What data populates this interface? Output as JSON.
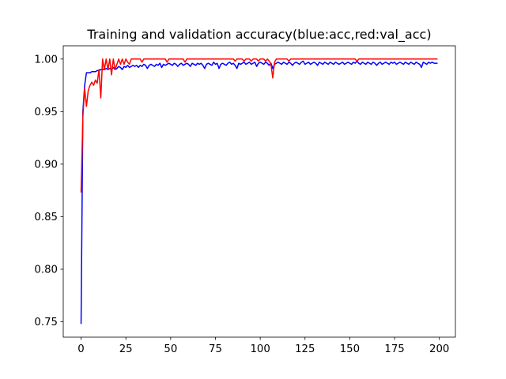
{
  "chart_data": {
    "type": "line",
    "title": "Training and validation accuracy(blue:acc,red:val_acc)",
    "x": [
      0,
      1,
      2,
      3,
      4,
      5,
      6,
      7,
      8,
      9,
      10,
      11,
      12,
      13,
      14,
      15,
      16,
      17,
      18,
      19,
      20,
      21,
      22,
      23,
      24,
      25,
      26,
      27,
      28,
      29,
      30,
      31,
      32,
      33,
      34,
      35,
      36,
      37,
      38,
      39,
      40,
      41,
      42,
      43,
      44,
      45,
      46,
      47,
      48,
      49,
      50,
      51,
      52,
      53,
      54,
      55,
      56,
      57,
      58,
      59,
      60,
      61,
      62,
      63,
      64,
      65,
      66,
      67,
      68,
      69,
      70,
      71,
      72,
      73,
      74,
      75,
      76,
      77,
      78,
      79,
      80,
      81,
      82,
      83,
      84,
      85,
      86,
      87,
      88,
      89,
      90,
      91,
      92,
      93,
      94,
      95,
      96,
      97,
      98,
      99,
      100,
      101,
      102,
      103,
      104,
      105,
      106,
      107,
      108,
      109,
      110,
      111,
      112,
      113,
      114,
      115,
      116,
      117,
      118,
      119,
      120,
      121,
      122,
      123,
      124,
      125,
      126,
      127,
      128,
      129,
      130,
      131,
      132,
      133,
      134,
      135,
      136,
      137,
      138,
      139,
      140,
      141,
      142,
      143,
      144,
      145,
      146,
      147,
      148,
      149,
      150,
      151,
      152,
      153,
      154,
      155,
      156,
      157,
      158,
      159,
      160,
      161,
      162,
      163,
      164,
      165,
      166,
      167,
      168,
      169,
      170,
      171,
      172,
      173,
      174,
      175,
      176,
      177,
      178,
      179,
      180,
      181,
      182,
      183,
      184,
      185,
      186,
      187,
      188,
      189,
      190,
      191,
      192,
      193,
      194,
      195,
      196,
      197,
      198,
      199
    ],
    "series": [
      {
        "color": "#0000ff",
        "values": [
          0.748,
          0.95,
          0.975,
          0.987,
          0.987,
          0.987,
          0.988,
          0.988,
          0.988,
          0.989,
          0.989,
          0.99,
          0.99,
          0.99,
          0.991,
          0.99,
          0.991,
          0.99,
          0.992,
          0.99,
          0.991,
          0.993,
          0.992,
          0.99,
          0.993,
          0.992,
          0.994,
          0.992,
          0.993,
          0.994,
          0.993,
          0.994,
          0.992,
          0.994,
          0.993,
          0.995,
          0.994,
          0.991,
          0.994,
          0.995,
          0.994,
          0.993,
          0.995,
          0.994,
          0.996,
          0.992,
          0.995,
          0.994,
          0.995,
          0.996,
          0.995,
          0.994,
          0.996,
          0.995,
          0.993,
          0.995,
          0.996,
          0.994,
          0.995,
          0.996,
          0.995,
          0.993,
          0.996,
          0.995,
          0.994,
          0.996,
          0.995,
          0.996,
          0.994,
          0.991,
          0.995,
          0.996,
          0.995,
          0.994,
          0.997,
          0.995,
          0.996,
          0.991,
          0.995,
          0.996,
          0.995,
          0.994,
          0.996,
          0.997,
          0.995,
          0.996,
          0.994,
          0.991,
          0.996,
          0.995,
          0.996,
          0.997,
          0.995,
          0.996,
          0.997,
          0.995,
          0.996,
          0.997,
          0.993,
          0.996,
          0.997,
          0.996,
          0.995,
          0.997,
          0.996,
          0.994,
          0.996,
          0.991,
          0.995,
          0.996,
          0.997,
          0.996,
          0.995,
          0.997,
          0.996,
          0.995,
          0.997,
          0.996,
          0.994,
          0.996,
          0.997,
          0.996,
          0.995,
          0.997,
          0.998,
          0.995,
          0.996,
          0.997,
          0.995,
          0.996,
          0.997,
          0.996,
          0.994,
          0.997,
          0.996,
          0.995,
          0.997,
          0.996,
          0.995,
          0.997,
          0.996,
          0.995,
          0.997,
          0.996,
          0.995,
          0.996,
          0.997,
          0.995,
          0.996,
          0.997,
          0.996,
          0.995,
          0.997,
          0.996,
          0.998,
          0.996,
          0.995,
          0.997,
          0.996,
          0.995,
          0.997,
          0.996,
          0.995,
          0.997,
          0.996,
          0.994,
          0.996,
          0.997,
          0.995,
          0.996,
          0.997,
          0.996,
          0.995,
          0.997,
          0.996,
          0.997,
          0.995,
          0.996,
          0.997,
          0.996,
          0.995,
          0.997,
          0.996,
          0.995,
          0.997,
          0.996,
          0.995,
          0.997,
          0.996,
          0.995,
          0.992,
          0.997,
          0.996,
          0.995,
          0.997,
          0.996,
          0.997,
          0.996,
          0.996,
          0.996
        ]
      },
      {
        "color": "#ff0000",
        "values": [
          0.873,
          0.945,
          0.972,
          0.955,
          0.97,
          0.975,
          0.978,
          0.975,
          0.98,
          0.977,
          0.99,
          0.963,
          1.0,
          0.99,
          1.0,
          0.99,
          1.0,
          0.985,
          1.0,
          0.99,
          0.995,
          1.0,
          0.995,
          1.0,
          0.995,
          1.0,
          0.997,
          0.995,
          1.0,
          1.0,
          1.0,
          1.0,
          1.0,
          1.0,
          0.997,
          1.0,
          1.0,
          1.0,
          1.0,
          1.0,
          1.0,
          1.0,
          1.0,
          1.0,
          1.0,
          1.0,
          1.0,
          1.0,
          0.997,
          1.0,
          1.0,
          1.0,
          1.0,
          1.0,
          1.0,
          1.0,
          1.0,
          1.0,
          0.997,
          1.0,
          1.0,
          1.0,
          1.0,
          1.0,
          1.0,
          1.0,
          1.0,
          1.0,
          1.0,
          1.0,
          1.0,
          1.0,
          1.0,
          1.0,
          1.0,
          1.0,
          1.0,
          1.0,
          1.0,
          1.0,
          1.0,
          1.0,
          1.0,
          1.0,
          1.0,
          1.0,
          0.998,
          1.0,
          1.0,
          1.0,
          1.0,
          0.998,
          1.0,
          1.0,
          1.0,
          0.998,
          1.0,
          1.0,
          1.0,
          0.998,
          1.0,
          1.0,
          1.0,
          0.998,
          1.0,
          0.998,
          0.995,
          0.982,
          0.997,
          1.0,
          1.0,
          1.0,
          1.0,
          1.0,
          1.0,
          1.0,
          0.998,
          1.0,
          1.0,
          1.0,
          1.0,
          1.0,
          1.0,
          1.0,
          1.0,
          1.0,
          1.0,
          1.0,
          1.0,
          1.0,
          1.0,
          1.0,
          1.0,
          1.0,
          1.0,
          1.0,
          1.0,
          1.0,
          1.0,
          1.0,
          1.0,
          1.0,
          1.0,
          1.0,
          1.0,
          1.0,
          1.0,
          1.0,
          1.0,
          1.0,
          1.0,
          1.0,
          1.0,
          1.0,
          0.998,
          1.0,
          1.0,
          1.0,
          1.0,
          1.0,
          1.0,
          1.0,
          1.0,
          1.0,
          1.0,
          1.0,
          1.0,
          1.0,
          1.0,
          1.0,
          1.0,
          1.0,
          1.0,
          1.0,
          1.0,
          1.0,
          1.0,
          1.0,
          1.0,
          1.0,
          1.0,
          1.0,
          1.0,
          1.0,
          1.0,
          1.0,
          1.0,
          1.0,
          1.0,
          1.0,
          1.0,
          1.0,
          1.0,
          1.0,
          1.0,
          1.0,
          1.0,
          1.0,
          1.0,
          1.0
        ]
      }
    ],
    "xlim": [
      -9.95,
      208.95
    ],
    "xticks": [
      0,
      25,
      50,
      75,
      100,
      125,
      150,
      175,
      200
    ],
    "ylim": [
      0.7354,
      1.0126
    ],
    "yticks": [
      0.75,
      {
        "value": 0.8,
        "label": "0.80"
      },
      0.85,
      {
        "value": 0.9,
        "label": "0.90"
      },
      0.95,
      {
        "value": 1.0,
        "label": "1.00"
      }
    ],
    "grid": false
  }
}
